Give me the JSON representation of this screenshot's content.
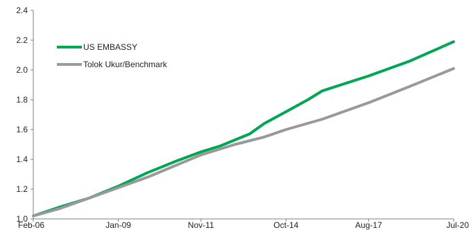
{
  "chart_data": {
    "type": "line",
    "title": "",
    "xlabel": "",
    "ylabel": "",
    "x_tick_labels": [
      "Feb-06",
      "Jan-09",
      "Nov-11",
      "Oct-14",
      "Aug-17",
      "Jul-20"
    ],
    "ylim": [
      1.0,
      2.4
    ],
    "y_ticks": [
      "1.0",
      "1.2",
      "1.4",
      "1.6",
      "1.8",
      "2.0",
      "2.2",
      "2.4"
    ],
    "legend_position": "top-left",
    "grid": false,
    "series": [
      {
        "name": "US EMBASSY",
        "color": "#00a651",
        "points": [
          [
            "Feb-06",
            1.02
          ],
          [
            "Jan-07",
            1.08
          ],
          [
            "Jan-08",
            1.14
          ],
          [
            "Jan-09",
            1.22
          ],
          [
            "Jan-10",
            1.31
          ],
          [
            "Jan-11",
            1.39
          ],
          [
            "Nov-11",
            1.45
          ],
          [
            "Jul-12",
            1.49
          ],
          [
            "Jan-13",
            1.53
          ],
          [
            "Jul-13",
            1.57
          ],
          [
            "Jan-14",
            1.64
          ],
          [
            "Oct-14",
            1.72
          ],
          [
            "Jul-15",
            1.8
          ],
          [
            "Jan-16",
            1.86
          ],
          [
            "Aug-17",
            1.96
          ],
          [
            "Jan-19",
            2.06
          ],
          [
            "Jul-20",
            2.19
          ]
        ]
      },
      {
        "name": "Tolok Ukur/Benchmark",
        "color": "#999999",
        "points": [
          [
            "Feb-06",
            1.02
          ],
          [
            "Jan-07",
            1.07
          ],
          [
            "Jan-09",
            1.21
          ],
          [
            "Jan-10",
            1.28
          ],
          [
            "Nov-11",
            1.43
          ],
          [
            "Jan-13",
            1.5
          ],
          [
            "Jan-14",
            1.55
          ],
          [
            "Oct-14",
            1.6
          ],
          [
            "Jan-16",
            1.67
          ],
          [
            "Aug-17",
            1.78
          ],
          [
            "Jan-19",
            1.89
          ],
          [
            "Jul-20",
            2.01
          ]
        ]
      }
    ]
  },
  "colors": {
    "axis": "#7f7f7f",
    "text": "#222222"
  }
}
